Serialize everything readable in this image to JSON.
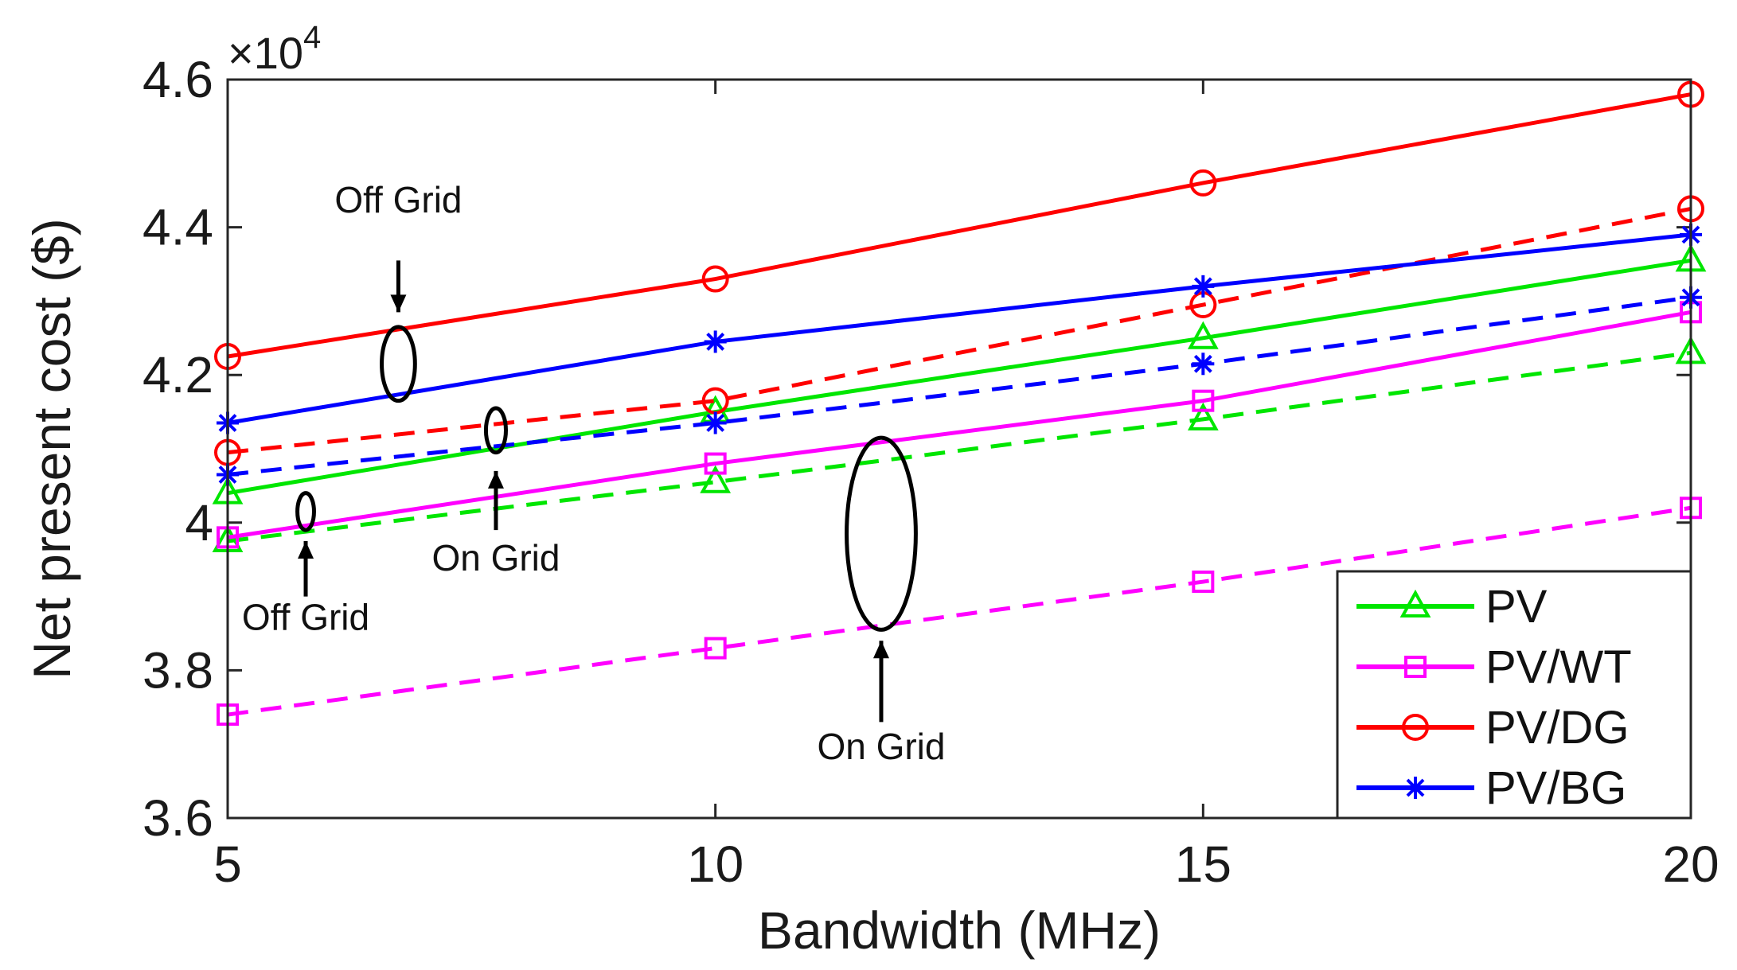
{
  "chart_data": {
    "type": "line",
    "title": "",
    "xlabel": "Bandwidth (MHz)",
    "ylabel": "Net present cost ($)",
    "y_multiplier": {
      "prefix": "×10",
      "exponent": "4"
    },
    "xlim": [
      5,
      20
    ],
    "ylim": [
      3.6,
      4.6
    ],
    "x": [
      5,
      10,
      15,
      20
    ],
    "xticks": [
      "5",
      "10",
      "15",
      "20"
    ],
    "yticks": [
      "3.6",
      "3.8",
      "4",
      "4.2",
      "4.4",
      "4.6"
    ],
    "series": [
      {
        "name": "PV",
        "scenario": "off-grid",
        "color": "#00e600",
        "marker": "triangle",
        "style": "solid",
        "values": [
          4.04,
          4.15,
          4.25,
          4.355
        ]
      },
      {
        "name": "PV",
        "scenario": "on-grid",
        "color": "#00e600",
        "marker": "triangle",
        "style": "dashed",
        "values": [
          3.975,
          4.055,
          4.14,
          4.23
        ]
      },
      {
        "name": "PV/WT",
        "scenario": "off-grid",
        "color": "#ff00ff",
        "marker": "square",
        "style": "solid",
        "values": [
          3.98,
          4.08,
          4.165,
          4.285
        ]
      },
      {
        "name": "PV/WT",
        "scenario": "on-grid",
        "color": "#ff00ff",
        "marker": "square",
        "style": "dashed",
        "values": [
          3.74,
          3.83,
          3.92,
          4.02
        ]
      },
      {
        "name": "PV/DG",
        "scenario": "off-grid",
        "color": "#ff0000",
        "marker": "circle",
        "style": "solid",
        "values": [
          4.225,
          4.33,
          4.46,
          4.58
        ]
      },
      {
        "name": "PV/DG",
        "scenario": "on-grid",
        "color": "#ff0000",
        "marker": "circle",
        "style": "dashed",
        "values": [
          4.095,
          4.165,
          4.295,
          4.425
        ]
      },
      {
        "name": "PV/BG",
        "scenario": "off-grid",
        "color": "#0000ff",
        "marker": "star",
        "style": "solid",
        "values": [
          4.135,
          4.245,
          4.32,
          4.39
        ]
      },
      {
        "name": "PV/BG",
        "scenario": "on-grid",
        "color": "#0000ff",
        "marker": "star",
        "style": "dashed",
        "values": [
          4.065,
          4.135,
          4.215,
          4.305
        ]
      }
    ],
    "legend": {
      "position": "bottom-right",
      "entries": [
        {
          "label": "PV",
          "color": "#00e600",
          "marker": "triangle"
        },
        {
          "label": "PV/WT",
          "color": "#ff00ff",
          "marker": "square"
        },
        {
          "label": "PV/DG",
          "color": "#ff0000",
          "marker": "circle"
        },
        {
          "label": "PV/BG",
          "color": "#0000ff",
          "marker": "star"
        }
      ]
    },
    "annotations": [
      {
        "text": "Off Grid",
        "ellipse_center": [
          6.75,
          4.215
        ],
        "ellipse_ry": 0.05,
        "arrow_from": 4.355,
        "arrow_to": 4.285,
        "text_y": 4.42,
        "direction": "down"
      },
      {
        "text": "On Grid",
        "ellipse_center": [
          7.75,
          4.125
        ],
        "ellipse_ry": 0.03,
        "arrow_from": 3.99,
        "arrow_to": 4.07,
        "text_y": 3.935,
        "direction": "up"
      },
      {
        "text": "Off Grid",
        "ellipse_center": [
          5.8,
          4.015
        ],
        "ellipse_ry": 0.025,
        "arrow_from": 3.9,
        "arrow_to": 3.975,
        "text_y": 3.855,
        "direction": "up"
      },
      {
        "text": "On Grid",
        "ellipse_center": [
          11.7,
          3.985
        ],
        "ellipse_ry": 0.13,
        "arrow_from": 3.73,
        "arrow_to": 3.84,
        "text_y": 3.68,
        "direction": "up"
      }
    ]
  }
}
